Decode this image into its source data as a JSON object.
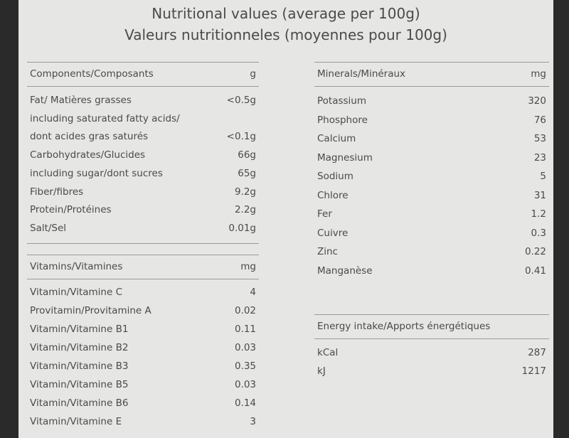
{
  "title": {
    "line1": "Nutritional values (average per 100g)",
    "line2": "Valeurs nutritionneles (moyennes pour 100g)"
  },
  "components": {
    "header": "Components/Composants",
    "unit": "g",
    "rows": [
      {
        "label": "Fat/ Matières grasses",
        "value": "<0.5g"
      },
      {
        "label": "including saturated fatty acids/"
      },
      {
        "label": "dont acides gras saturés",
        "value": "<0.1g"
      },
      {
        "label": "Carbohydrates/Glucides",
        "value": "66g"
      },
      {
        "label": "including sugar/dont sucres",
        "value": "65g"
      },
      {
        "label": "Fiber/fibres",
        "value": "9.2g"
      },
      {
        "label": "Protein/Protéines",
        "value": "2.2g"
      },
      {
        "label": "Salt/Sel",
        "value": "0.01g"
      }
    ]
  },
  "vitamins": {
    "header": "Vitamins/Vitamines",
    "unit": "mg",
    "rows": [
      {
        "label": "Vitamin/Vitamine C",
        "value": 4
      },
      {
        "label": "Provitamin/Provitamine A",
        "value": 0.02
      },
      {
        "label": "Vitamin/Vitamine B1",
        "value": 0.11
      },
      {
        "label": "Vitamin/Vitamine B2",
        "value": 0.03
      },
      {
        "label": "Vitamin/Vitamine B3",
        "value": 0.35
      },
      {
        "label": "Vitamin/Vitamine B5",
        "value": 0.03
      },
      {
        "label": "Vitamin/Vitamine B6",
        "value": 0.14
      },
      {
        "label": "Vitamin/Vitamine E",
        "value": 3
      }
    ]
  },
  "minerals": {
    "header": "Minerals/Minéraux",
    "unit": "mg",
    "rows": [
      {
        "label": "Potassium",
        "value": 320
      },
      {
        "label": "Phosphore",
        "value": 76
      },
      {
        "label": "Calcium",
        "value": 53
      },
      {
        "label": "Magnesium",
        "value": 23
      },
      {
        "label": "Sodium",
        "value": 5
      },
      {
        "label": "Chlore",
        "value": 31
      },
      {
        "label": "Fer",
        "value": 1.2
      },
      {
        "label": "Cuivre",
        "value": 0.3
      },
      {
        "label": "Zinc",
        "value": 0.22
      },
      {
        "label": "Manganèse",
        "value": 0.41
      }
    ]
  },
  "energy": {
    "header": "Energy intake/Apports énergétiques",
    "rows": [
      {
        "label": "kCal",
        "value": 287
      },
      {
        "label": "kJ",
        "value": 1217
      }
    ]
  }
}
